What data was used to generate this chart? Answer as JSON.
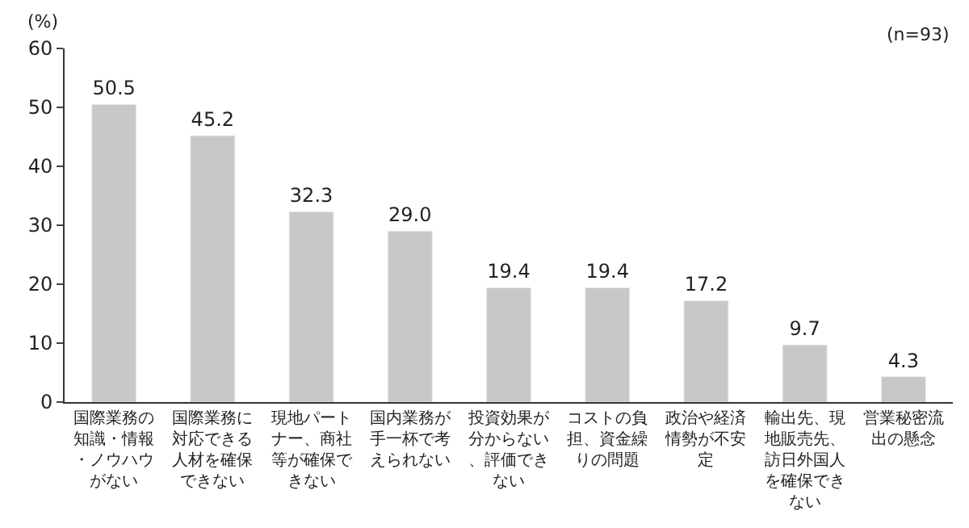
{
  "chart_data": {
    "type": "bar",
    "ylabel": "(%)",
    "annotations": [
      "(n=93)"
    ],
    "categories": [
      "国際業務の知識・情報・ノウハウがない",
      "国際業務に対応できる人材を確保できない",
      "現地パートナー、商社等が確保できない",
      "国内業務が手一杯で考えられない",
      "投資効果が分からない、評価できない",
      "コストの負担、資金繰りの問題",
      "政治や経済情勢が不安定",
      "輸出先、現地販売先、訪日外国人を確保できない",
      "営業秘密流出の懸念"
    ],
    "values": [
      50.5,
      45.2,
      32.3,
      29.0,
      19.4,
      19.4,
      17.2,
      9.7,
      4.3
    ],
    "value_labels": [
      "50.5",
      "45.2",
      "32.3",
      "29.0",
      "19.4",
      "19.4",
      "17.2",
      "9.7",
      "4.3"
    ],
    "color": "#c8c8c8",
    "ylim": [
      0,
      60
    ],
    "yticks": [
      0,
      10,
      20,
      30,
      40,
      50,
      60
    ]
  }
}
